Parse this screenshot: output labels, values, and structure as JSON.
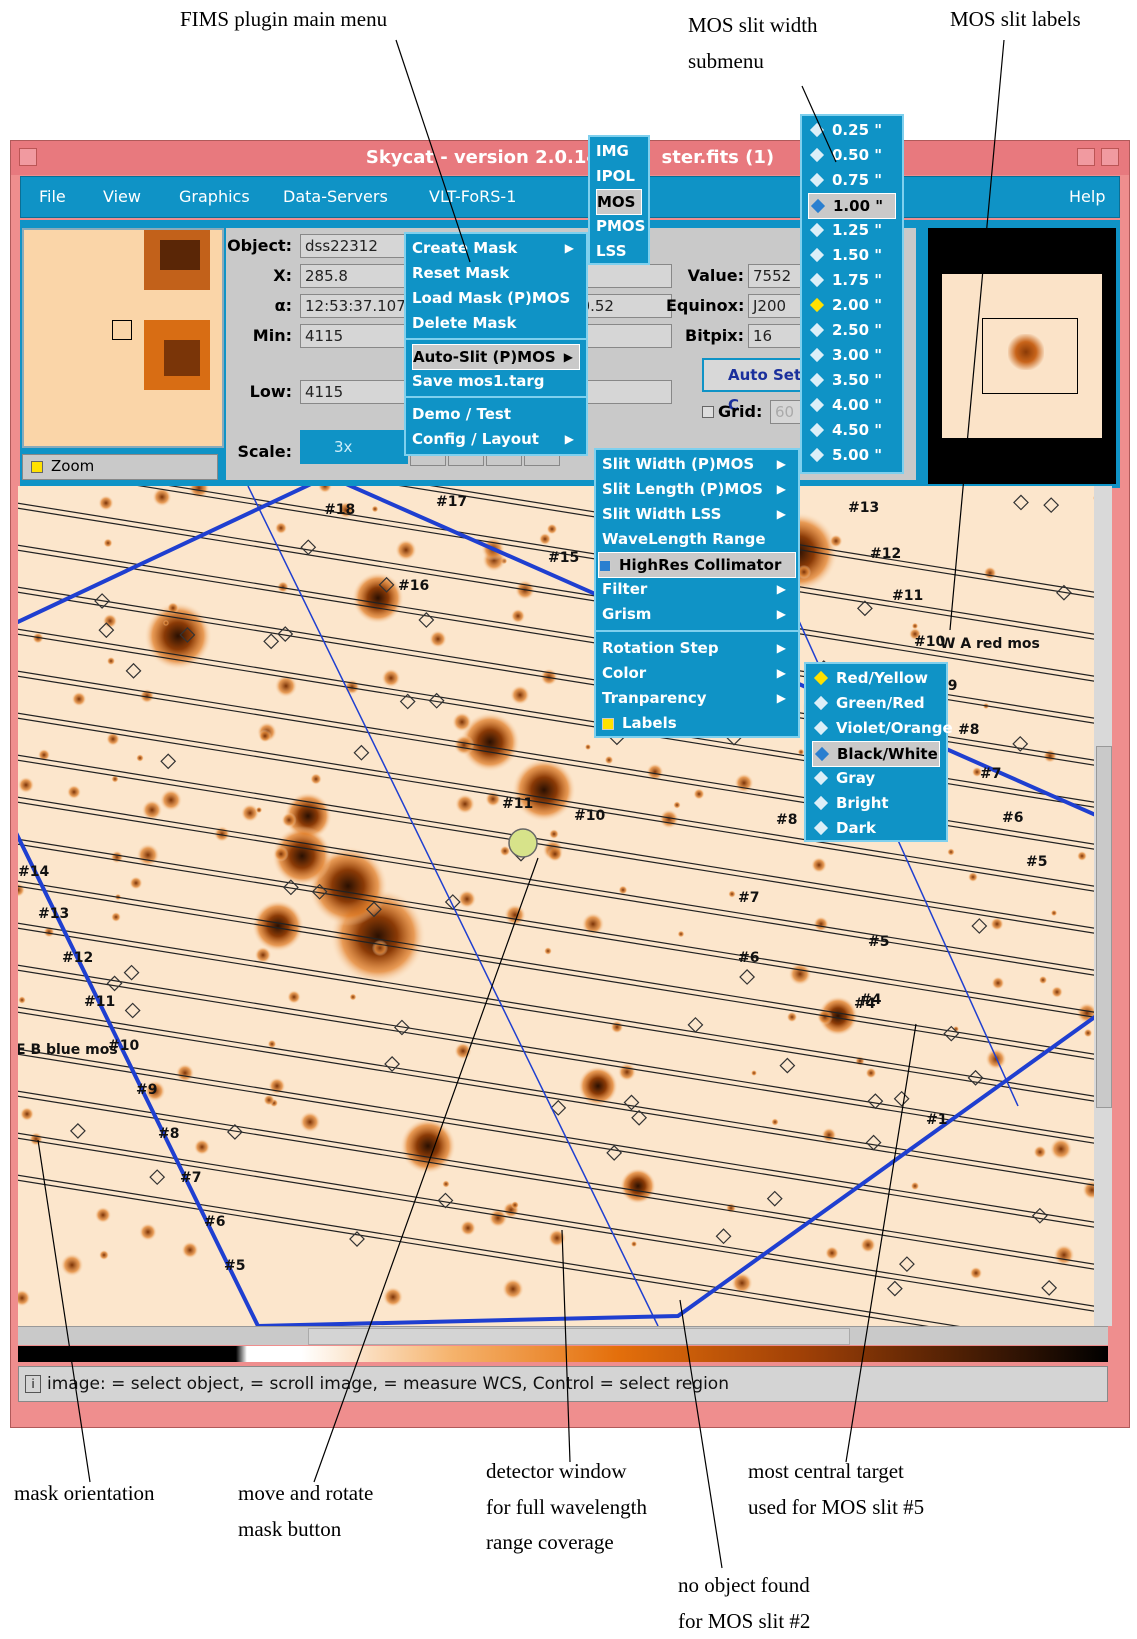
{
  "annotations": {
    "fims_menu": "FIMS plugin main menu",
    "slit_width_1": "MOS slit width",
    "slit_width_2": "submenu",
    "slit_labels": "MOS slit labels",
    "mask_orientation": "mask orientation",
    "move_rotate_1": "move and rotate",
    "move_rotate_2": "mask button",
    "detector_1": "detector window",
    "detector_2": "for full wavelength",
    "detector_3": "range coverage",
    "central_1": "most central target",
    "central_2": "used for MOS slit #5",
    "noobj_1": "no object found",
    "noobj_2": "for MOS slit #2"
  },
  "window": {
    "title": "Skycat - version 2.0.14",
    "title_suffix": "ster.fits (1)"
  },
  "menubar": {
    "file": "File",
    "view": "View",
    "graphics": "Graphics",
    "data_servers": "Data-Servers",
    "vlt": "VLT-FoRS-1",
    "help": "Help"
  },
  "fields": {
    "object_label": "Object:",
    "object_value": "dss22312",
    "x_label": "X:",
    "x_value": "285.8",
    "alpha_label": "α:",
    "alpha_value": "12:53:37.107",
    "delta_value": "40.52",
    "min_label": "Min:",
    "min_value": "4115",
    "low_label": "Low:",
    "low_value": "4115",
    "value_label": "Value:",
    "value_value": "7552",
    "equinox_label": "Equinox:",
    "equinox_value": "J200",
    "bitpix_label": "Bitpix:",
    "bitpix_value": "16",
    "autoset": "Auto Set C",
    "grid_label": "Grid:",
    "grid_value": "60",
    "scale_label": "Scale:",
    "scale_value": "3x",
    "zoom_label": "Zoom"
  },
  "mode_menu": [
    "IMG",
    "IPOL",
    "MOS",
    "PMOS",
    "LSS"
  ],
  "main_menu": {
    "create_mask": "Create Mask",
    "reset_mask": "Reset Mask",
    "load_mask": "Load Mask (P)MOS",
    "delete_mask": "Delete Mask",
    "auto_slit": "Auto-Slit (P)MOS",
    "save": "Save  mos1.targ",
    "demo": "Demo / Test",
    "config": "Config / Layout"
  },
  "config_menu": {
    "slit_width_pmos": "Slit Width (P)MOS",
    "slit_length_pmos": "Slit Length (P)MOS",
    "slit_width_lss": "Slit Width LSS",
    "wavelength": "WaveLength Range",
    "highres": "HighRes Collimator",
    "filter": "Filter",
    "grism": "Grism",
    "rotation": "Rotation Step",
    "color": "Color",
    "transparency": "Tranparency",
    "labels": "Labels"
  },
  "width_menu": [
    "0.25  \"",
    "0.50  \"",
    "0.75  \"",
    "1.00  \"",
    "1.25  \"",
    "1.50  \"",
    "1.75  \"",
    "2.00  \"",
    "2.50  \"",
    "3.00  \"",
    "3.50  \"",
    "4.00  \"",
    "4.50  \"",
    "5.00  \""
  ],
  "color_menu": [
    "Red/Yellow",
    "Green/Red",
    "Violet/Orange",
    "Black/White",
    "Gray",
    "Bright",
    "Dark"
  ],
  "slit_labels_right": [
    "#13",
    "#12",
    "#11",
    "#10",
    "#9",
    "#8",
    "#7",
    "#6",
    "#5",
    "#4"
  ],
  "slit_labels_left": [
    "#14",
    "#13",
    "#12",
    "#11",
    "#10",
    "#9",
    "#8",
    "#7",
    "#6",
    "#5"
  ],
  "slit_labels_top": [
    "#18",
    "#17",
    "#16",
    "#15"
  ],
  "slit_labels_inner": [
    "#11",
    "#10",
    "#8",
    "#7",
    "#6",
    "#5",
    "#4",
    "#1"
  ],
  "orientation_right": "W A red mos",
  "orientation_left": "E B blue mos",
  "status": "image:  = select object,  = scroll image,  = measure WCS, Control  = select region"
}
